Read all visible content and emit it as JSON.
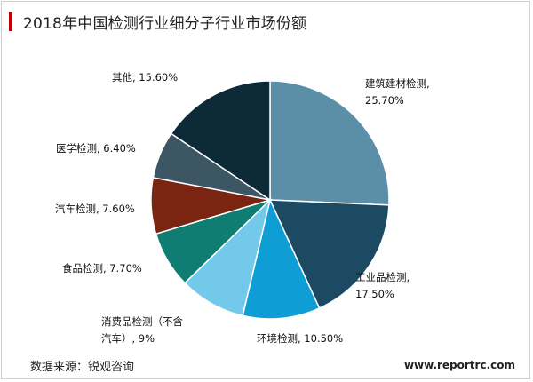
{
  "title": "2018年中国检测行业细分子行业市场份额",
  "source": "数据来源：锐观咨询",
  "website": "www.reportrc.com",
  "chart_data": {
    "type": "pie",
    "title": "2018年中国检测行业细分子行业市场份额",
    "series": [
      {
        "name": "建筑建材检测",
        "value": 25.7,
        "label": [
          "建筑建材检测,",
          "25.70%"
        ],
        "color": "#5b8fa8"
      },
      {
        "name": "工业品检测",
        "value": 17.5,
        "label": [
          "工业品检测,",
          "17.50%"
        ],
        "color": "#1d4a63"
      },
      {
        "name": "环境检测",
        "value": 10.5,
        "label": [
          "环境检测, 10.50%"
        ],
        "color": "#0f9dd6"
      },
      {
        "name": "消费品检测（不含汽车）",
        "value": 9,
        "label": [
          "消费品检测（不含",
          "汽车）, 9%"
        ],
        "color": "#72c9ea"
      },
      {
        "name": "食品检测",
        "value": 7.7,
        "label": [
          "食品检测, 7.70%"
        ],
        "color": "#0f7d71"
      },
      {
        "name": "汽车检测",
        "value": 7.6,
        "label": [
          "汽车检测, 7.60%"
        ],
        "color": "#7a2511"
      },
      {
        "name": "医学检测",
        "value": 6.4,
        "label": [
          "医学检测, 6.40%"
        ],
        "color": "#3c5663"
      },
      {
        "name": "其他",
        "value": 15.6,
        "label": [
          "其他, 15.60%"
        ],
        "color": "#0d2a38"
      }
    ]
  }
}
